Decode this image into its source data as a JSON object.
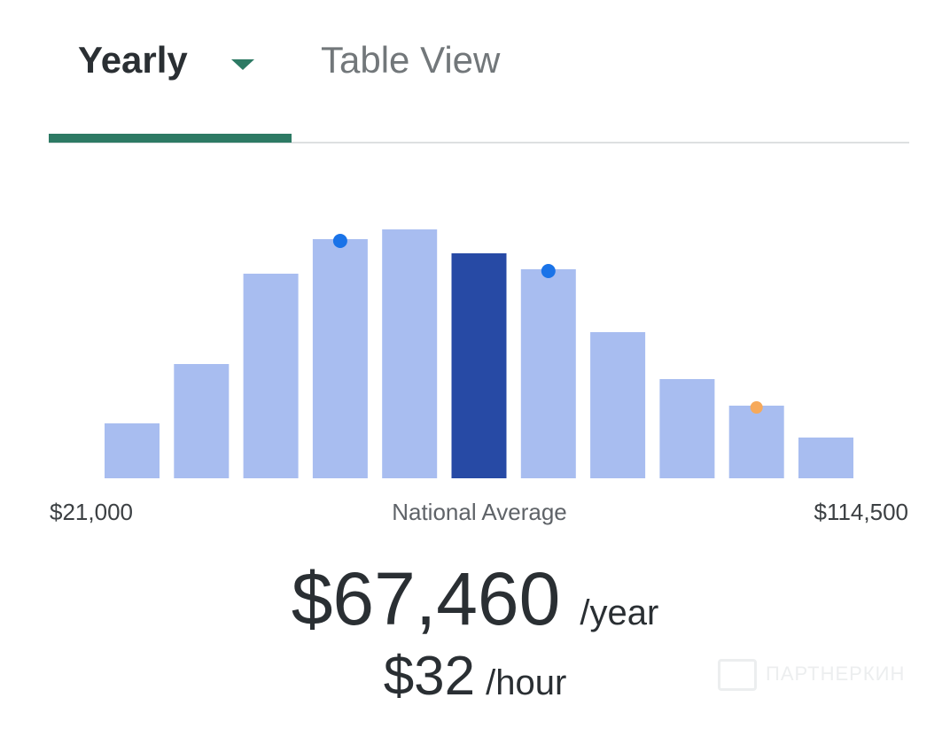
{
  "tabs": {
    "yearly": "Yearly",
    "table_view": "Table View"
  },
  "colors": {
    "accent": "#2d7a64",
    "bar": "#a8bdf0",
    "bar_highlight": "#274aa5",
    "dot_blue": "#1a73e8",
    "dot_orange": "#f6a95a"
  },
  "chart_data": {
    "type": "bar",
    "title": "",
    "xlabel": "National Average",
    "ylabel": "",
    "x_range_labels": {
      "min": "$21,000",
      "max": "$114,500"
    },
    "values": [
      62,
      129,
      231,
      270,
      281,
      254,
      236,
      165,
      112,
      82,
      46
    ],
    "ylim": [
      0,
      300
    ],
    "highlight_index": 5,
    "markers": [
      {
        "bar_index": 3,
        "color": "blue"
      },
      {
        "bar_index": 6,
        "color": "blue"
      },
      {
        "bar_index": 9,
        "color": "orange"
      }
    ],
    "grid": false
  },
  "salary": {
    "yearly_amount": "$67,460",
    "yearly_unit": "/year",
    "hourly_amount": "$32",
    "hourly_unit": "/hour"
  },
  "watermark": "ПАРТНЕРКИН"
}
